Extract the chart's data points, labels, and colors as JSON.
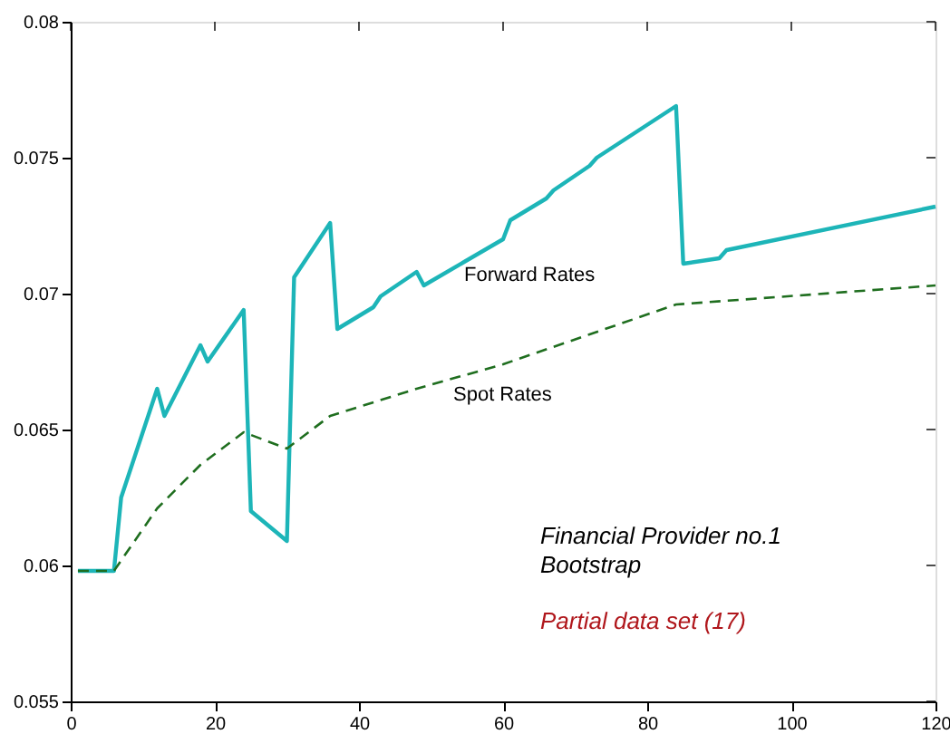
{
  "chart_data": {
    "type": "line",
    "xlim": [
      0,
      120
    ],
    "xticks": [
      0,
      20,
      40,
      60,
      80,
      100,
      120
    ],
    "ylim": [
      0.055,
      0.08
    ],
    "yticks": [
      0.055,
      0.06,
      0.065,
      0.07,
      0.075,
      0.08
    ],
    "grid": false,
    "marker": "none",
    "series": [
      {
        "name": "Forward Rates",
        "color": "#1db5b8",
        "line_style": "solid",
        "x": [
          1,
          6,
          7,
          12,
          13,
          18,
          19,
          24,
          25,
          30,
          31,
          36,
          37,
          42,
          43,
          48,
          49,
          60,
          61,
          66,
          67,
          72,
          73,
          84,
          85,
          90,
          91,
          120
        ],
        "values": [
          0.0598,
          0.0598,
          0.0625,
          0.0665,
          0.0655,
          0.0681,
          0.0675,
          0.0694,
          0.062,
          0.0609,
          0.0706,
          0.0726,
          0.0687,
          0.0695,
          0.0699,
          0.0708,
          0.0703,
          0.072,
          0.0727,
          0.0735,
          0.0738,
          0.0747,
          0.075,
          0.0769,
          0.0711,
          0.0713,
          0.0716,
          0.0732
        ]
      },
      {
        "name": "Spot Rates",
        "color": "#1f6e1f",
        "line_style": "dashed",
        "x": [
          1,
          6,
          12,
          18,
          24,
          30,
          36,
          48,
          60,
          72,
          84,
          120
        ],
        "values": [
          0.0598,
          0.0598,
          0.0621,
          0.0637,
          0.0649,
          0.0643,
          0.0655,
          0.0665,
          0.0674,
          0.0685,
          0.0696,
          0.0703
        ]
      }
    ],
    "annotations": [
      "Financial Provider no.1",
      "Bootstrap",
      "Partial data set (17)"
    ]
  }
}
